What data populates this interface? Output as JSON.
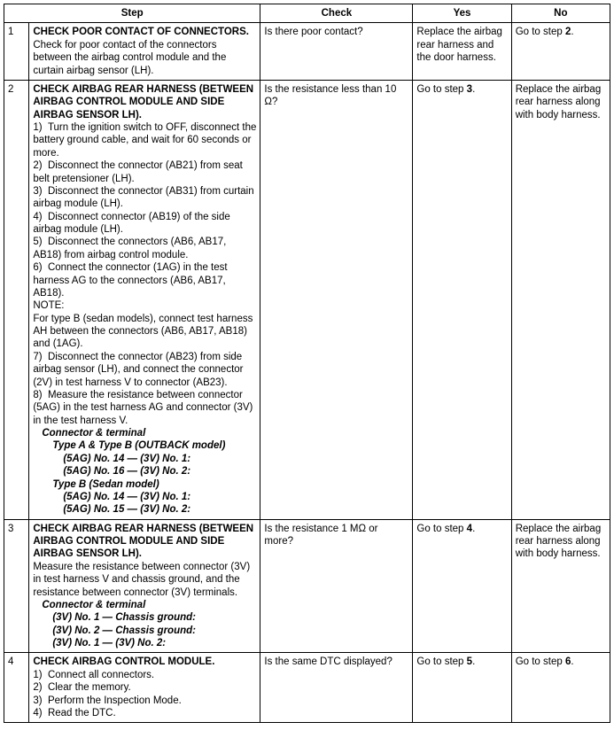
{
  "headers": {
    "step": "Step",
    "check": "Check",
    "yes": "Yes",
    "no": "No"
  },
  "rows": [
    {
      "num": "1",
      "title": "CHECK POOR CONTACT OF CONNECTORS.",
      "body": [
        "Check for poor contact of the connectors between the airbag control module and the curtain airbag sensor (LH)."
      ],
      "check": "Is there poor contact?",
      "yes": "Replace the airbag rear harness and the door harness.",
      "no_pre": "Go to step ",
      "no_bold": "2",
      "no_post": "."
    },
    {
      "num": "2",
      "title": "CHECK AIRBAG REAR HARNESS (BETWEEN AIRBAG CONTROL MODULE AND SIDE AIRBAG SENSOR LH).",
      "body": [
        "1)  Turn the ignition switch to OFF, disconnect the battery ground cable, and wait for 60 seconds or more.",
        "2)  Disconnect the connector (AB21) from seat belt pretensioner (LH).",
        "3)  Disconnect the connector (AB31) from curtain airbag module (LH).",
        "4)  Disconnect connector (AB19) of the side airbag module (LH).",
        "5)  Disconnect the connectors (AB6, AB17, AB18) from airbag control module.",
        "6)  Connect the connector (1AG) in the test harness AG to the connectors (AB6, AB17, AB18).",
        "NOTE:",
        "For type B (sedan models), connect test harness AH between the connectors (AB6, AB17, AB18) and (1AG).",
        "7)  Disconnect the connector (AB23) from side airbag sensor (LH), and connect the connector (2V) in test harness V to connector (AB23).",
        "8)  Measure the resistance between connector (5AG) in the test harness AG and connector (3V) in the test harness V."
      ],
      "ct_header": "Connector & terminal",
      "ct_lines": [
        {
          "indent": 1,
          "text": "Type A & Type B (OUTBACK model)"
        },
        {
          "indent": 2,
          "text": "(5AG) No. 14 — (3V) No. 1:"
        },
        {
          "indent": 2,
          "text": "(5AG) No. 16 — (3V) No. 2:"
        },
        {
          "indent": 1,
          "text": "Type B (Sedan model)"
        },
        {
          "indent": 2,
          "text": "(5AG) No. 14 — (3V) No. 1:"
        },
        {
          "indent": 2,
          "text": "(5AG) No. 15 — (3V) No. 2:"
        }
      ],
      "check": "Is the resistance less than 10 Ω?",
      "yes_pre": "Go to step ",
      "yes_bold": "3",
      "yes_post": ".",
      "no": "Replace the airbag rear harness along with body harness."
    },
    {
      "num": "3",
      "title": "CHECK AIRBAG REAR HARNESS (BETWEEN AIRBAG CONTROL MODULE AND SIDE AIRBAG SENSOR LH).",
      "body": [
        "Measure the resistance between connector (3V) in test harness V and chassis ground, and the resistance between connector (3V) terminals."
      ],
      "ct_header": "Connector & terminal",
      "ct_lines": [
        {
          "indent": 1,
          "text": "(3V) No. 1 — Chassis ground:"
        },
        {
          "indent": 1,
          "text": "(3V) No. 2 — Chassis ground:"
        },
        {
          "indent": 1,
          "text": "(3V) No. 1 — (3V) No. 2:"
        }
      ],
      "check": "Is the resistance 1 MΩ or more?",
      "yes_pre": "Go to step ",
      "yes_bold": "4",
      "yes_post": ".",
      "no": "Replace the airbag rear harness along with body harness."
    },
    {
      "num": "4",
      "title": "CHECK AIRBAG CONTROL MODULE.",
      "body": [
        "1)  Connect all connectors.",
        "2)  Clear the memory.",
        "3)  Perform the Inspection Mode.",
        "4)  Read the DTC."
      ],
      "check": "Is the same DTC displayed?",
      "yes_pre": "Go to step ",
      "yes_bold": "5",
      "yes_post": ".",
      "no_pre": "Go to step ",
      "no_bold": "6",
      "no_post": "."
    }
  ]
}
